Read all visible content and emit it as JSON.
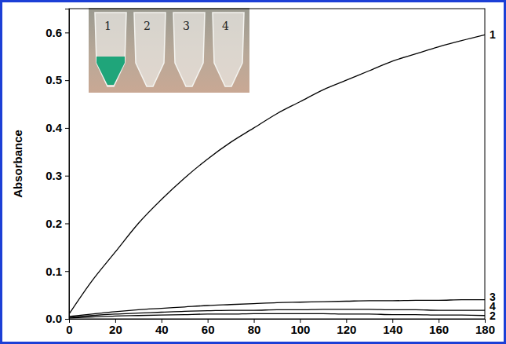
{
  "chart_data": {
    "type": "line",
    "y_label": "Absorbance",
    "x": [
      0,
      10,
      20,
      30,
      40,
      50,
      60,
      70,
      80,
      90,
      100,
      110,
      120,
      130,
      140,
      150,
      160,
      170,
      180
    ],
    "series": [
      {
        "name": "1",
        "color": "#000000",
        "values": [
          0.01,
          0.08,
          0.14,
          0.2,
          0.25,
          0.295,
          0.335,
          0.37,
          0.4,
          0.43,
          0.455,
          0.48,
          0.5,
          0.52,
          0.54,
          0.555,
          0.57,
          0.583,
          0.595
        ]
      },
      {
        "name": "2",
        "color": "#000000",
        "values": [
          0.002,
          0.004,
          0.006,
          0.007,
          0.008,
          0.009,
          0.01,
          0.01,
          0.011,
          0.011,
          0.011,
          0.011,
          0.01,
          0.01,
          0.009,
          0.009,
          0.008,
          0.008,
          0.007
        ]
      },
      {
        "name": "3",
        "color": "#000000",
        "values": [
          0.005,
          0.01,
          0.015,
          0.019,
          0.022,
          0.025,
          0.028,
          0.03,
          0.032,
          0.034,
          0.035,
          0.036,
          0.037,
          0.038,
          0.038,
          0.039,
          0.039,
          0.04,
          0.04
        ]
      },
      {
        "name": "4",
        "color": "#000000",
        "values": [
          0.003,
          0.007,
          0.01,
          0.012,
          0.014,
          0.016,
          0.017,
          0.018,
          0.018,
          0.019,
          0.019,
          0.02,
          0.02,
          0.02,
          0.019,
          0.019,
          0.018,
          0.018,
          0.018
        ]
      }
    ],
    "xlim": [
      0,
      180
    ],
    "xticks": [
      0,
      20,
      40,
      60,
      80,
      100,
      120,
      140,
      160,
      180
    ],
    "ylim": [
      0,
      0.65
    ],
    "yticks": [
      {
        "value": 0,
        "label": "0.0"
      },
      0.1,
      0.2,
      0.3,
      0.4,
      0.5,
      0.6
    ],
    "grid": false,
    "annotations": [
      "1",
      "2",
      "3",
      "4"
    ]
  }
}
